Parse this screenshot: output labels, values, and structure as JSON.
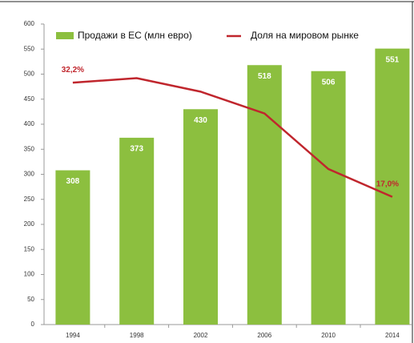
{
  "chart_data": {
    "type": "bar-line",
    "categories": [
      "1994",
      "1998",
      "2002",
      "2006",
      "2010",
      "2014"
    ],
    "series": [
      {
        "name": "Продажи в ЕС (млн евро)",
        "color": "#8cbf3f",
        "values": [
          308,
          373,
          430,
          518,
          506,
          551
        ]
      },
      {
        "name": "Доля на мировом рынке",
        "color": "#c0262d",
        "axis": "y2",
        "values": [
          32.2,
          32.8,
          31.0,
          28.1,
          20.7,
          17.0
        ],
        "value_labels": [
          "32,2%",
          null,
          null,
          null,
          null,
          "17,0%"
        ]
      }
    ],
    "ylim": [
      0,
      600
    ],
    "yticks": [
      0,
      50,
      100,
      150,
      200,
      250,
      300,
      350,
      400,
      450,
      500,
      550,
      600
    ],
    "y2lim": [
      0,
      40
    ],
    "legend": "top"
  }
}
